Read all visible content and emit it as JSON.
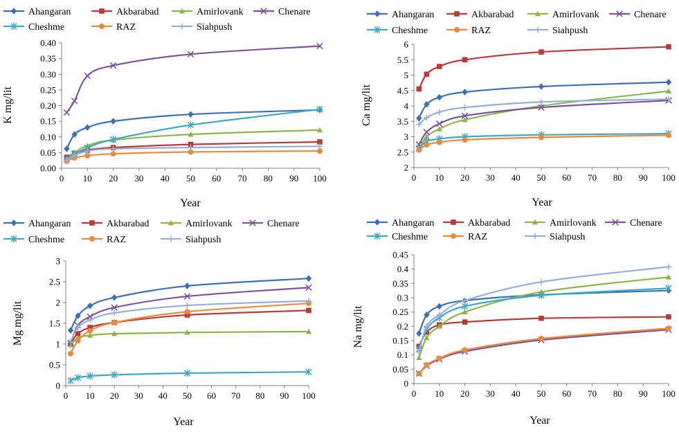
{
  "series_styles": {
    "Ahangaran": {
      "color": "#3d6fb6",
      "marker": "diamond"
    },
    "Akbarabad": {
      "color": "#b83b37",
      "marker": "square"
    },
    "Amirlovank": {
      "color": "#8db54a",
      "marker": "triangle"
    },
    "Chenare": {
      "color": "#7b559c",
      "marker": "x"
    },
    "Cheshme": {
      "color": "#3fa8c2",
      "marker": "star"
    },
    "RAZ": {
      "color": "#ec8a3b",
      "marker": "circle"
    },
    "Siahpush": {
      "color": "#97afd8",
      "marker": "plus"
    }
  },
  "chart_data": [
    {
      "type": "line",
      "ylabel": "K mg/lit",
      "xlabel": "Year",
      "xlim": [
        0,
        100
      ],
      "ylim": [
        0,
        0.4
      ],
      "xticks": [
        0,
        10,
        20,
        30,
        40,
        50,
        60,
        70,
        80,
        90,
        100
      ],
      "xtick_labels": [
        "0",
        "10",
        "20",
        "30",
        "40",
        "50",
        "60",
        "70",
        "80",
        "90",
        "100"
      ],
      "yticks": [
        0,
        0.05,
        0.1,
        0.15,
        0.2,
        0.25,
        0.3,
        0.35,
        0.4
      ],
      "ytick_labels": [
        "0.00",
        "0.05",
        "0.10",
        "0.15",
        "0.20",
        "0.25",
        "0.30",
        "0.35",
        "0.40"
      ],
      "x": [
        2,
        5,
        10,
        20,
        50,
        100
      ],
      "series": [
        {
          "name": "Ahangaran",
          "values": [
            0.062,
            0.108,
            0.13,
            0.15,
            0.172,
            0.186
          ]
        },
        {
          "name": "Akbarabad",
          "values": [
            0.035,
            0.048,
            0.058,
            0.066,
            0.076,
            0.084
          ]
        },
        {
          "name": "Amirlovank",
          "values": [
            0.03,
            0.05,
            0.072,
            0.09,
            0.108,
            0.122
          ]
        },
        {
          "name": "Chenare",
          "values": [
            0.178,
            0.215,
            0.295,
            0.328,
            0.364,
            0.39
          ]
        },
        {
          "name": "Cheshme",
          "values": [
            0.028,
            0.045,
            0.065,
            0.092,
            0.138,
            0.188
          ]
        },
        {
          "name": "RAZ",
          "values": [
            0.022,
            0.033,
            0.04,
            0.046,
            0.052,
            0.055
          ]
        },
        {
          "name": "Siahpush",
          "values": [
            0.025,
            0.04,
            0.055,
            0.062,
            0.066,
            0.07
          ]
        }
      ]
    },
    {
      "type": "line",
      "ylabel": "Ca mg/lit",
      "xlabel": "Year",
      "xlim": [
        0,
        100
      ],
      "ylim": [
        2,
        6
      ],
      "xticks": [
        0,
        10,
        20,
        30,
        40,
        50,
        60,
        70,
        80,
        90,
        100
      ],
      "xtick_labels": [
        "0",
        "10",
        "20",
        "30",
        "40",
        "50",
        "60",
        "70",
        "80",
        "90",
        "100"
      ],
      "yticks": [
        2,
        2.5,
        3,
        3.5,
        4,
        4.5,
        5,
        5.5,
        6
      ],
      "ytick_labels": [
        "2",
        "2.5",
        "3",
        "3.5",
        "4",
        "4.5",
        "5",
        "5.5",
        "6"
      ],
      "x": [
        2,
        5,
        10,
        20,
        50,
        100
      ],
      "series": [
        {
          "name": "Ahangaran",
          "values": [
            3.6,
            4.05,
            4.28,
            4.45,
            4.63,
            4.77
          ]
        },
        {
          "name": "Akbarabad",
          "values": [
            4.55,
            5.03,
            5.28,
            5.5,
            5.75,
            5.92
          ]
        },
        {
          "name": "Amirlovank",
          "values": [
            2.6,
            3.0,
            3.25,
            3.55,
            4.0,
            4.48
          ]
        },
        {
          "name": "Chenare",
          "values": [
            2.75,
            3.15,
            3.42,
            3.68,
            3.95,
            4.18
          ]
        },
        {
          "name": "Cheshme",
          "values": [
            2.62,
            2.85,
            2.93,
            3.0,
            3.06,
            3.1
          ]
        },
        {
          "name": "RAZ",
          "values": [
            2.57,
            2.74,
            2.82,
            2.9,
            2.98,
            3.05
          ]
        },
        {
          "name": "Siahpush",
          "values": [
            3.4,
            3.62,
            3.8,
            3.95,
            4.13,
            4.22
          ]
        }
      ]
    },
    {
      "type": "line",
      "ylabel": "Mg mg/lit",
      "xlabel": "Year",
      "xlim": [
        0,
        100
      ],
      "ylim": [
        0,
        3
      ],
      "xticks": [
        0,
        10,
        20,
        30,
        40,
        50,
        60,
        70,
        80,
        90,
        100
      ],
      "xtick_labels": [
        "0",
        "10",
        "20",
        "30",
        "40",
        "50",
        "60",
        "70",
        "80",
        "90",
        "100"
      ],
      "yticks": [
        0,
        0.5,
        1,
        1.5,
        2,
        2.5,
        3
      ],
      "ytick_labels": [
        "0",
        "0.5",
        "1",
        "1.5",
        "2",
        "2.5",
        "3"
      ],
      "x": [
        2,
        5,
        10,
        20,
        50,
        100
      ],
      "series": [
        {
          "name": "Ahangaran",
          "values": [
            1.33,
            1.68,
            1.92,
            2.12,
            2.4,
            2.58
          ]
        },
        {
          "name": "Akbarabad",
          "values": [
            1.02,
            1.25,
            1.4,
            1.52,
            1.7,
            1.81
          ]
        },
        {
          "name": "Amirlovank",
          "values": [
            0.98,
            1.15,
            1.21,
            1.25,
            1.28,
            1.3
          ]
        },
        {
          "name": "Chenare",
          "values": [
            1.02,
            1.45,
            1.66,
            1.88,
            2.15,
            2.36
          ]
        },
        {
          "name": "Cheshme",
          "values": [
            0.12,
            0.19,
            0.23,
            0.26,
            0.3,
            0.33
          ]
        },
        {
          "name": "RAZ",
          "values": [
            0.77,
            1.08,
            1.32,
            1.52,
            1.78,
            1.98
          ]
        },
        {
          "name": "Siahpush",
          "values": [
            1.05,
            1.4,
            1.58,
            1.75,
            1.93,
            2.04
          ]
        }
      ]
    },
    {
      "type": "line",
      "ylabel": "Na mg/lit",
      "xlabel": "Year",
      "xlim": [
        0,
        100
      ],
      "ylim": [
        0,
        0.45
      ],
      "xticks": [
        0,
        10,
        20,
        30,
        40,
        50,
        60,
        70,
        80,
        90,
        100
      ],
      "xtick_labels": [
        "0",
        "10",
        "20",
        "30",
        "40",
        "50",
        "60",
        "70",
        "80",
        "90",
        "100"
      ],
      "yticks": [
        0,
        0.05,
        0.1,
        0.15,
        0.2,
        0.25,
        0.3,
        0.35,
        0.4,
        0.45
      ],
      "ytick_labels": [
        "0",
        "0.05",
        "0.1",
        "0.15",
        "0.2",
        "0.25",
        "0.3",
        "0.35",
        "0.4",
        "0.45"
      ],
      "x": [
        2,
        5,
        10,
        20,
        50,
        100
      ],
      "series": [
        {
          "name": "Ahangaran",
          "values": [
            0.175,
            0.24,
            0.27,
            0.29,
            0.31,
            0.325
          ]
        },
        {
          "name": "Akbarabad",
          "values": [
            0.13,
            0.18,
            0.205,
            0.215,
            0.228,
            0.233
          ]
        },
        {
          "name": "Amirlovank",
          "values": [
            0.09,
            0.16,
            0.2,
            0.25,
            0.32,
            0.372
          ]
        },
        {
          "name": "Chenare",
          "values": [
            0.035,
            0.062,
            0.085,
            0.112,
            0.152,
            0.188
          ]
        },
        {
          "name": "Cheshme",
          "values": [
            0.12,
            0.19,
            0.23,
            0.27,
            0.308,
            0.333
          ]
        },
        {
          "name": "RAZ",
          "values": [
            0.035,
            0.065,
            0.088,
            0.117,
            0.157,
            0.193
          ]
        },
        {
          "name": "Siahpush",
          "values": [
            0.11,
            0.2,
            0.24,
            0.29,
            0.355,
            0.408
          ]
        }
      ]
    }
  ]
}
